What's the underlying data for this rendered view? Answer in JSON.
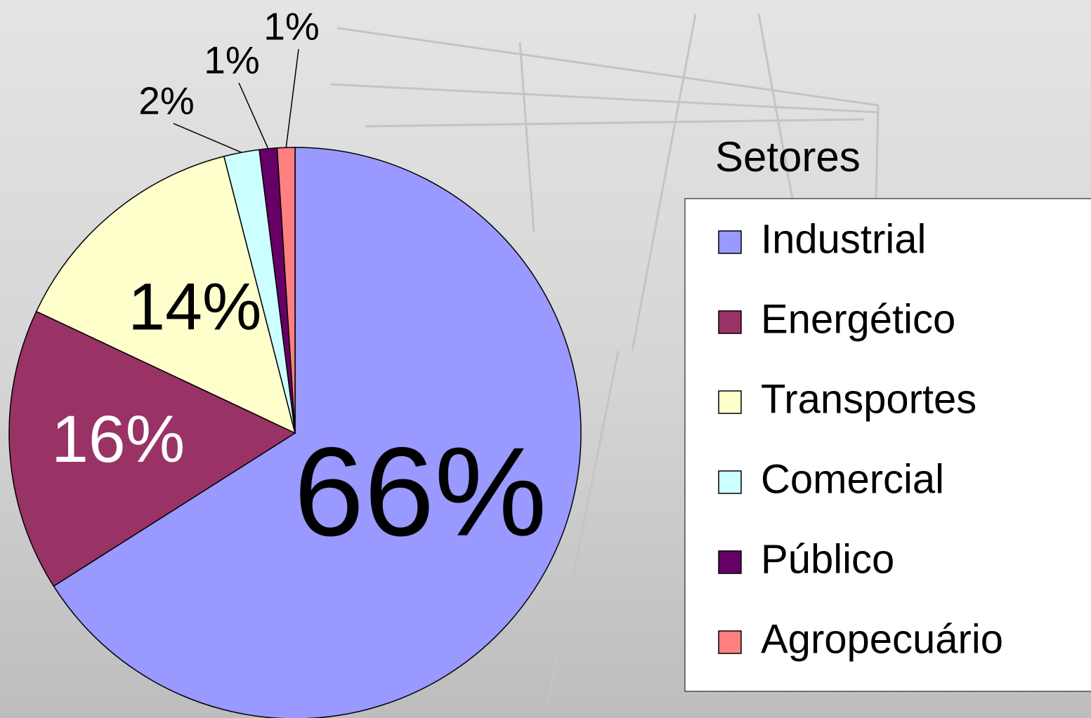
{
  "chart_data": {
    "type": "pie",
    "legend_title": "Setores",
    "categories": [
      "Industrial",
      "Energético",
      "Transportes",
      "Comercial",
      "Público",
      "Agropecuário"
    ],
    "values": [
      66,
      16,
      14,
      2,
      1,
      1
    ],
    "value_labels": [
      "66%",
      "16%",
      "14%",
      "2%",
      "1%",
      "1%"
    ],
    "colors": [
      "#9999ff",
      "#993366",
      "#ffffcc",
      "#ccffff",
      "#660066",
      "#ff8080"
    ],
    "legend": "right"
  }
}
